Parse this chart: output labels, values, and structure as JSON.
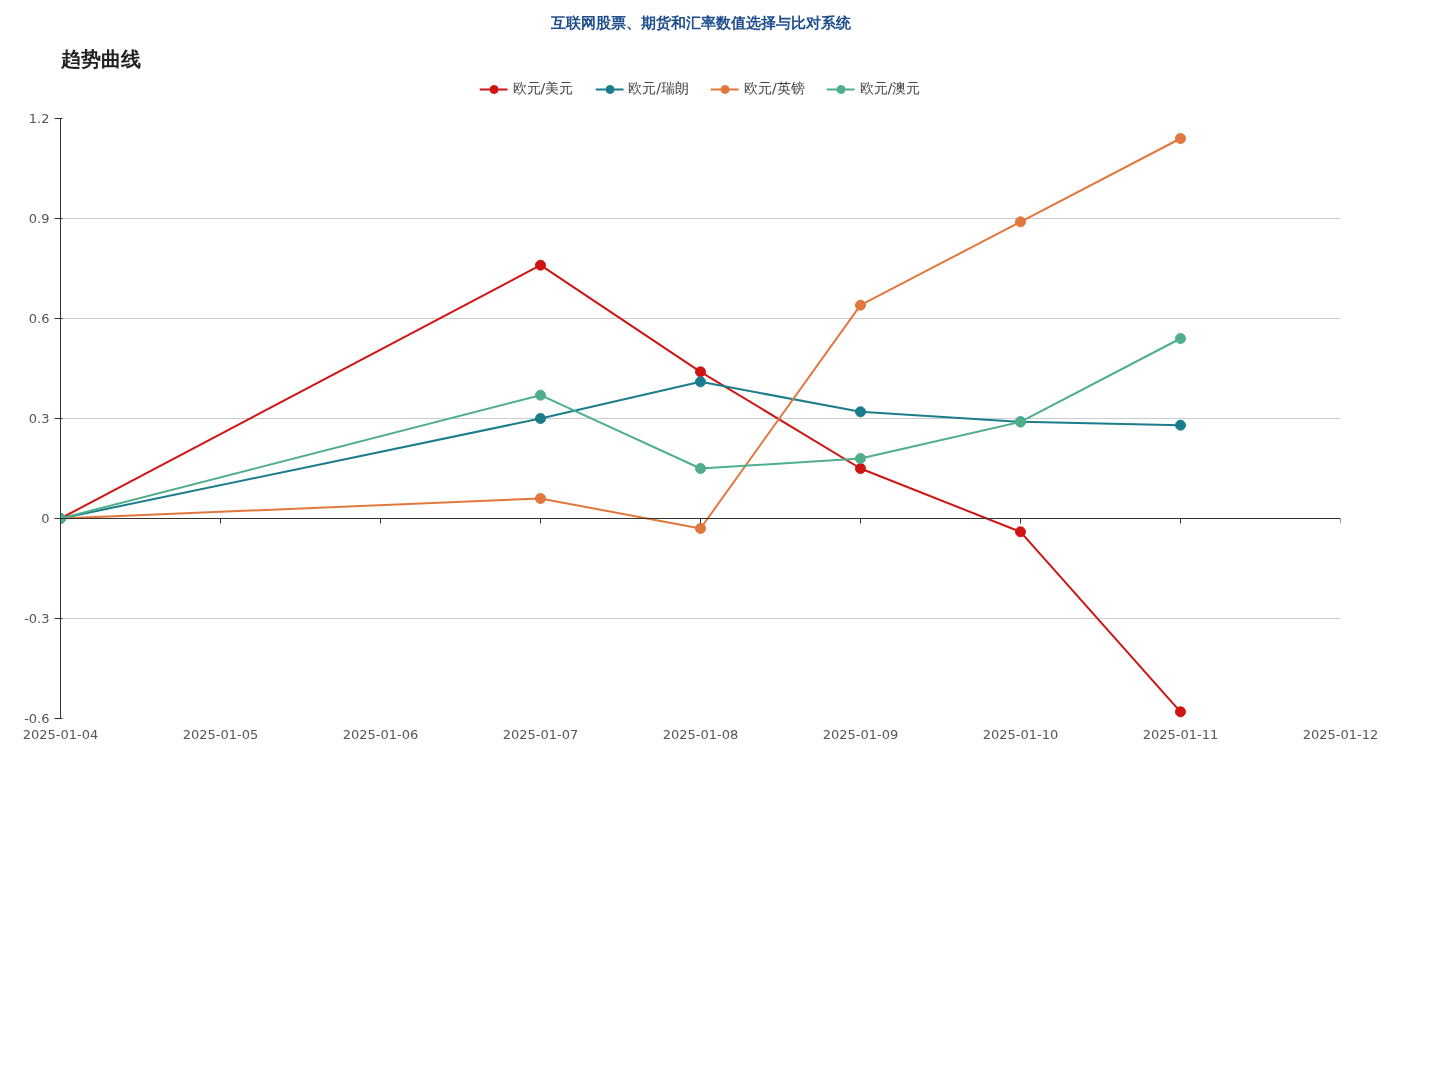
{
  "chart_data": {
    "type": "line",
    "title": "互联网股票、期货和汇率数值选择与比对系统",
    "subtitle": "趋势曲线",
    "x": [
      "2025-01-04",
      "2025-01-07",
      "2025-01-08",
      "2025-01-09",
      "2025-01-10",
      "2025-01-11"
    ],
    "series": [
      {
        "name": "欧元/美元",
        "color": "#d01414",
        "values": [
          0,
          0.76,
          0.44,
          0.15,
          -0.04,
          -0.58
        ]
      },
      {
        "name": "欧元/瑞朗",
        "color": "#1b7d8c",
        "values": [
          0,
          0.3,
          0.41,
          0.32,
          0.29,
          0.28
        ]
      },
      {
        "name": "欧元/英镑",
        "color": "#e2773d",
        "values": [
          0,
          0.06,
          -0.03,
          0.64,
          0.89,
          1.14
        ]
      },
      {
        "name": "欧元/澳元",
        "color": "#4fae8c",
        "values": [
          0,
          0.37,
          0.15,
          0.18,
          0.29,
          0.54
        ]
      }
    ],
    "xlim": [
      "2025-01-04",
      "2025-01-12"
    ],
    "xticks": [
      "2025-01-04",
      "2025-01-05",
      "2025-01-06",
      "2025-01-07",
      "2025-01-08",
      "2025-01-09",
      "2025-01-10",
      "2025-01-11",
      "2025-01-12"
    ],
    "ylim": [
      -0.6,
      1.2
    ],
    "yticks": [
      -0.6,
      -0.3,
      0,
      0.3,
      0.6,
      0.9,
      1.2
    ],
    "grid": "y",
    "legend": "top",
    "marker": "circle",
    "line_style": "solid"
  }
}
